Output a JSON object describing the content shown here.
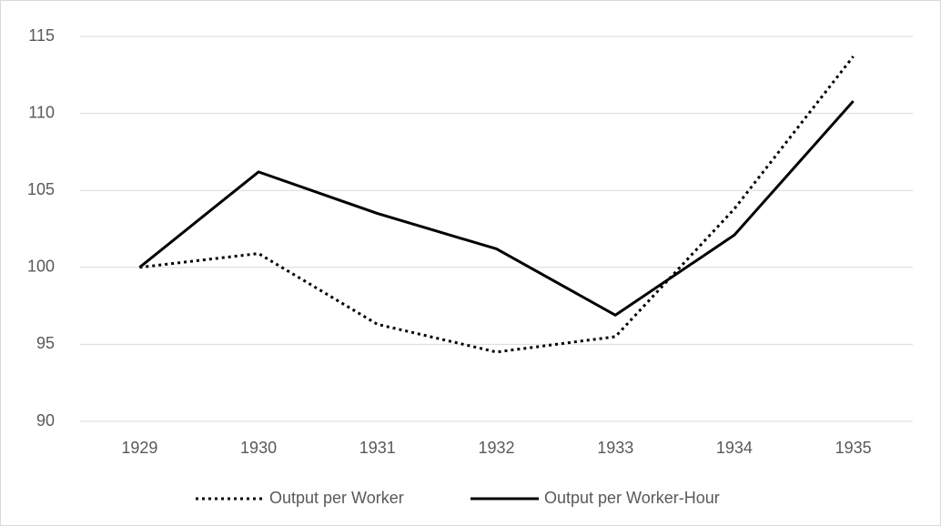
{
  "chart_data": {
    "type": "line",
    "categories": [
      "1929",
      "1930",
      "1931",
      "1932",
      "1933",
      "1934",
      "1935"
    ],
    "series": [
      {
        "name": "Output per Worker",
        "color": "#000000",
        "line_style": "dotted",
        "values": [
          100,
          100.9,
          96.3,
          94.5,
          95.5,
          103.8,
          113.7
        ]
      },
      {
        "name": "Output per Worker-Hour",
        "color": "#000000",
        "line_style": "solid",
        "values": [
          100,
          106.2,
          103.5,
          101.2,
          96.9,
          102.1,
          110.8
        ]
      }
    ],
    "ylim": [
      90,
      115
    ],
    "yticks": [
      90,
      95,
      100,
      105,
      110,
      115
    ],
    "grid": true,
    "legend": "bottom"
  }
}
